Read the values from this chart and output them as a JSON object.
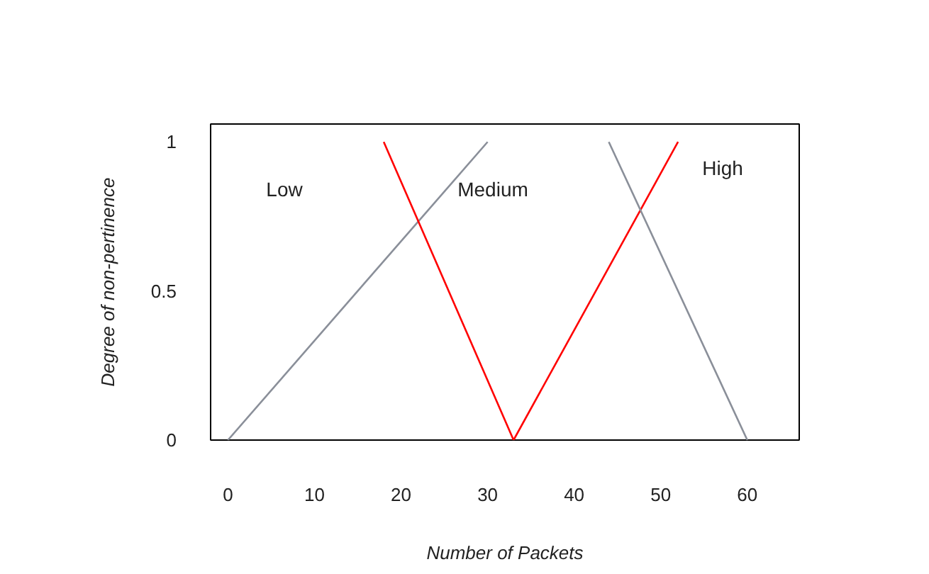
{
  "chart_data": {
    "type": "line",
    "xlabel": "Number of Packets",
    "ylabel": "Degree of non-pertinence",
    "xlim": [
      -2,
      66
    ],
    "ylim": [
      0,
      1.06
    ],
    "xticks": [
      0,
      10,
      20,
      30,
      40,
      50,
      60
    ],
    "yticks": [
      0,
      0.5,
      1
    ],
    "grid": false,
    "marker": "none",
    "line_style": "solid",
    "series": [
      {
        "color": "#8a8f99",
        "x": [
          0,
          30
        ],
        "values": [
          0,
          1
        ]
      },
      {
        "color": "#ff0000",
        "x": [
          18,
          33,
          52
        ],
        "values": [
          1,
          0,
          1
        ]
      },
      {
        "color": "#8a8f99",
        "x": [
          44,
          60
        ],
        "values": [
          1,
          0
        ]
      }
    ],
    "annotations": [
      "Low",
      "Medium",
      "High"
    ]
  }
}
